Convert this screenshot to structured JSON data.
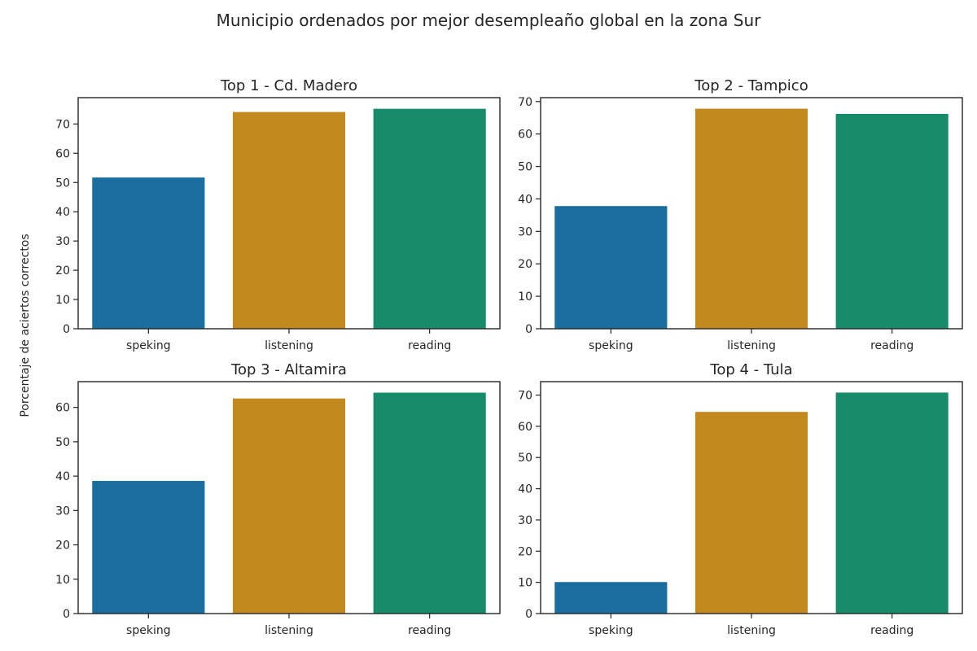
{
  "figure": {
    "title": "Municipio ordenados por mejor desempleaño global en la zona Sur",
    "ylabel": "Porcentaje de aciertos correctos"
  },
  "chart_data": [
    {
      "type": "bar",
      "title": "Top  1 - Cd. Madero",
      "categories": [
        "speking",
        "listening",
        "reading"
      ],
      "values": [
        51.7,
        74.1,
        75.2
      ],
      "colors": [
        "#1a6e9f",
        "#c3891f",
        "#168c6b"
      ],
      "ylim": [
        0,
        79
      ],
      "yticks": [
        0,
        10,
        20,
        30,
        40,
        50,
        60,
        70
      ],
      "grid": false
    },
    {
      "type": "bar",
      "title": "Top  2 - Tampico",
      "categories": [
        "speking",
        "listening",
        "reading"
      ],
      "values": [
        37.8,
        67.8,
        66.2
      ],
      "colors": [
        "#1a6e9f",
        "#c3891f",
        "#168c6b"
      ],
      "ylim": [
        0,
        71.2
      ],
      "yticks": [
        0,
        10,
        20,
        30,
        40,
        50,
        60,
        70
      ],
      "grid": false
    },
    {
      "type": "bar",
      "title": "Top  3 - Altamira",
      "categories": [
        "speking",
        "listening",
        "reading"
      ],
      "values": [
        38.6,
        62.6,
        64.3
      ],
      "colors": [
        "#1a6e9f",
        "#c3891f",
        "#168c6b"
      ],
      "ylim": [
        0,
        67.5
      ],
      "yticks": [
        0,
        10,
        20,
        30,
        40,
        50,
        60
      ],
      "grid": false
    },
    {
      "type": "bar",
      "title": "Top  4 - Tula",
      "categories": [
        "speking",
        "listening",
        "reading"
      ],
      "values": [
        10.1,
        64.6,
        70.8
      ],
      "colors": [
        "#1a6e9f",
        "#c3891f",
        "#168c6b"
      ],
      "ylim": [
        0,
        74.3
      ],
      "yticks": [
        0,
        10,
        20,
        30,
        40,
        50,
        60,
        70
      ],
      "grid": false
    }
  ]
}
